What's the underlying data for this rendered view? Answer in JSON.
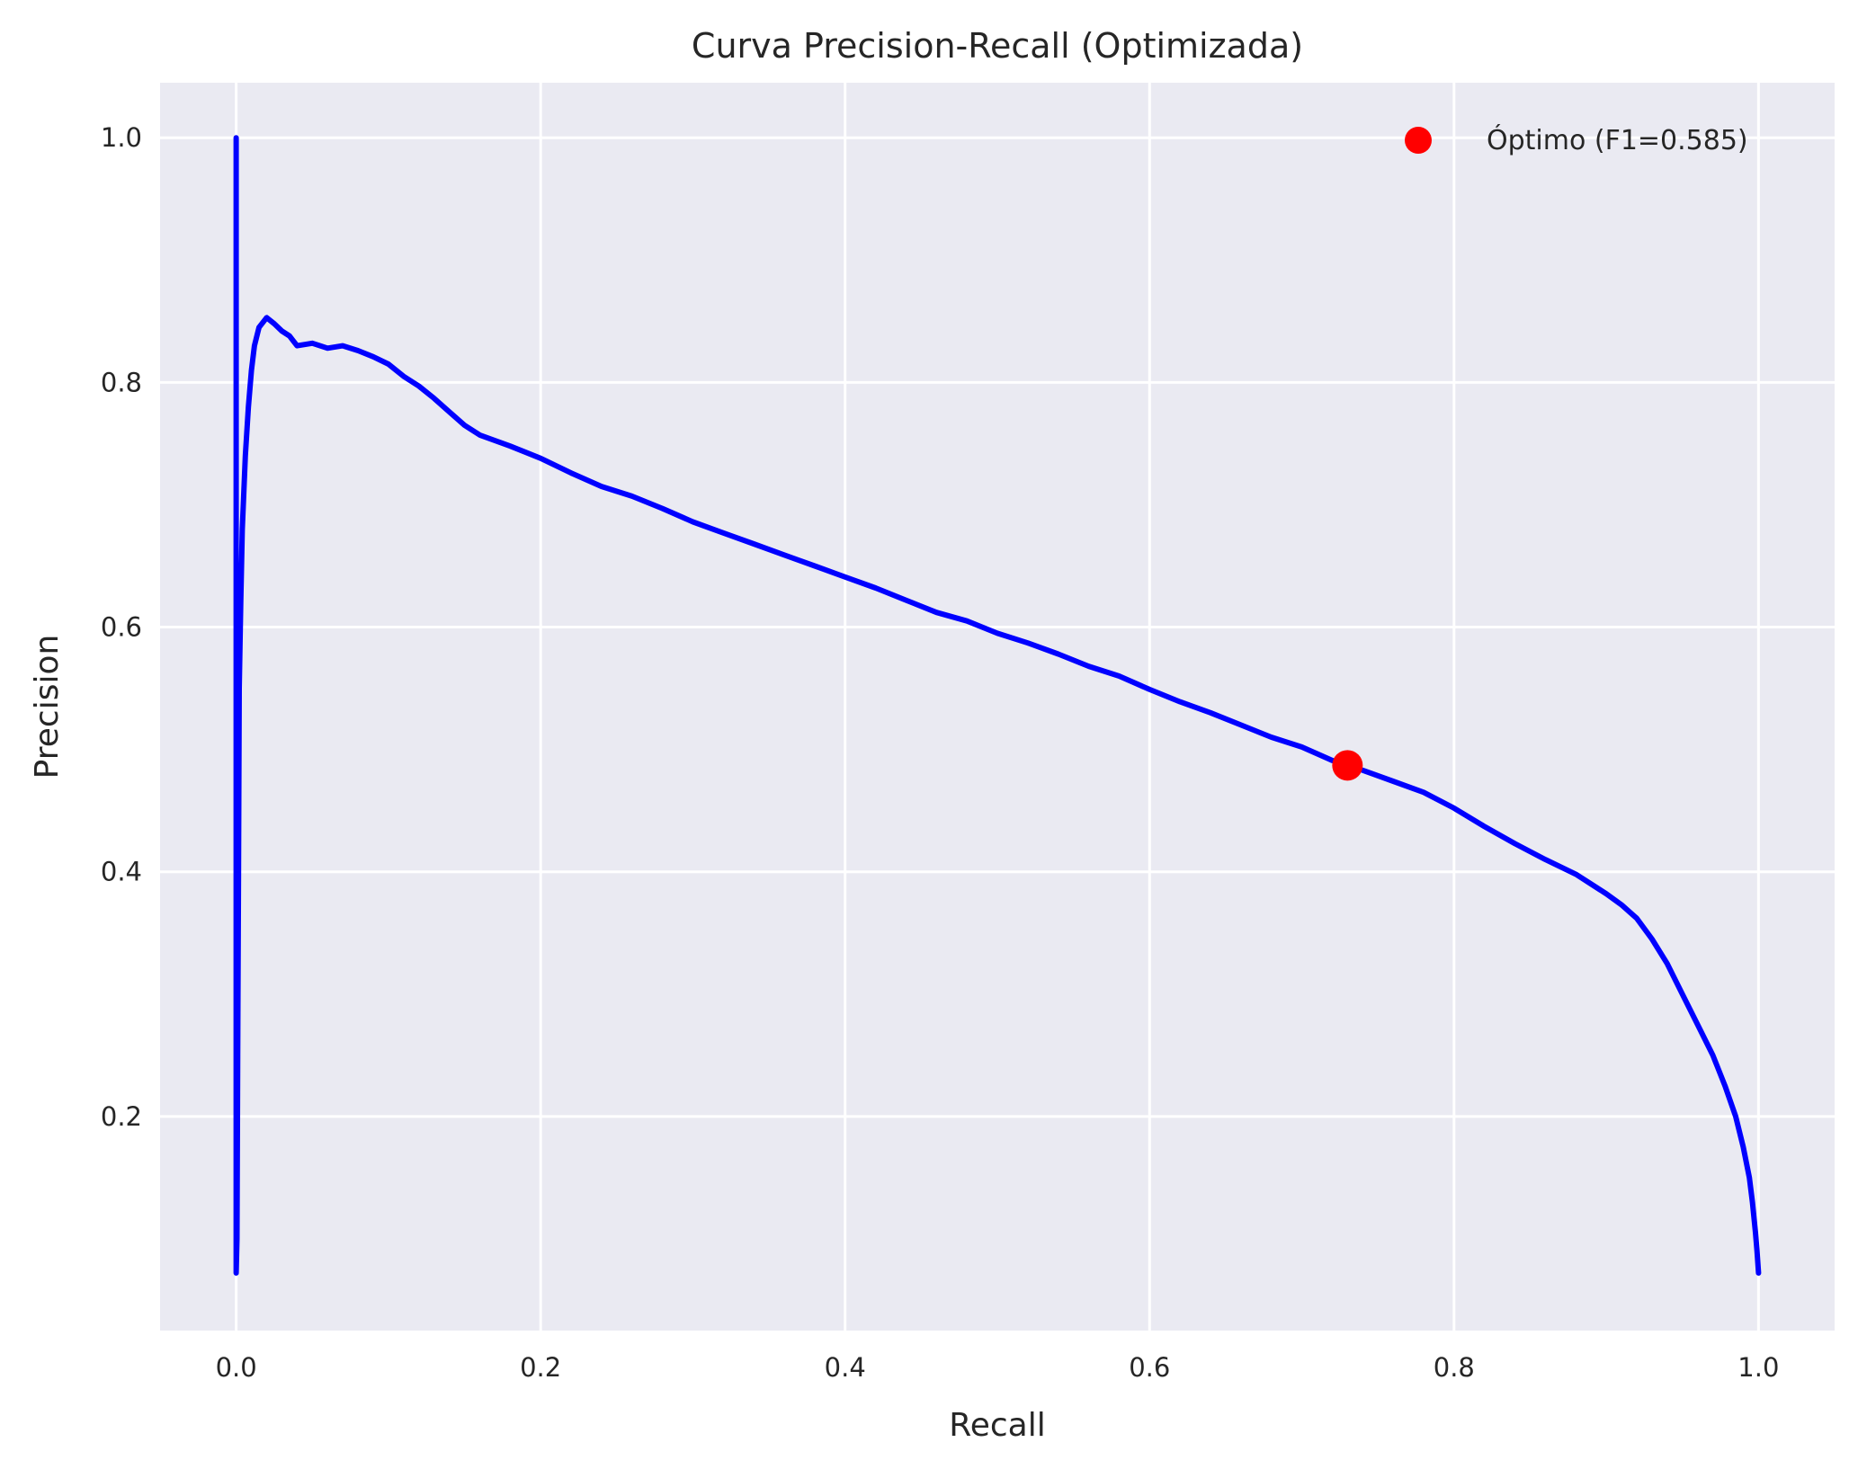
{
  "chart_data": {
    "type": "line",
    "title": "Curva Precision-Recall (Optimizada)",
    "xlabel": "Recall",
    "ylabel": "Precision",
    "xlim": [
      -0.05,
      1.05
    ],
    "ylim": [
      0.025,
      1.045
    ],
    "xticks": [
      0.0,
      0.2,
      0.4,
      0.6,
      0.8,
      1.0
    ],
    "xtick_labels": [
      "0.0",
      "0.2",
      "0.4",
      "0.6",
      "0.8",
      "1.0"
    ],
    "yticks": [
      0.2,
      0.4,
      0.6,
      0.8,
      1.0
    ],
    "ytick_labels": [
      "0.2",
      "0.4",
      "0.6",
      "0.8",
      "1.0"
    ],
    "grid": true,
    "legend_position": "top-right",
    "colors": {
      "background": "#eaeaf2",
      "grid": "#ffffff",
      "line": "#0000ff",
      "marker": "#ff0000"
    },
    "series": [
      {
        "values": [
          [
            1.0,
            0.072
          ],
          [
            0.999,
            0.09
          ],
          [
            0.998,
            0.105
          ],
          [
            0.996,
            0.13
          ],
          [
            0.994,
            0.15
          ],
          [
            0.99,
            0.175
          ],
          [
            0.985,
            0.2
          ],
          [
            0.978,
            0.225
          ],
          [
            0.97,
            0.25
          ],
          [
            0.96,
            0.275
          ],
          [
            0.95,
            0.3
          ],
          [
            0.94,
            0.325
          ],
          [
            0.93,
            0.345
          ],
          [
            0.92,
            0.362
          ],
          [
            0.91,
            0.373
          ],
          [
            0.9,
            0.382
          ],
          [
            0.89,
            0.39
          ],
          [
            0.88,
            0.398
          ],
          [
            0.86,
            0.41
          ],
          [
            0.84,
            0.423
          ],
          [
            0.82,
            0.437
          ],
          [
            0.8,
            0.452
          ],
          [
            0.78,
            0.465
          ],
          [
            0.76,
            0.474
          ],
          [
            0.74,
            0.483
          ],
          [
            0.73,
            0.487
          ],
          [
            0.72,
            0.491
          ],
          [
            0.7,
            0.502
          ],
          [
            0.68,
            0.51
          ],
          [
            0.66,
            0.52
          ],
          [
            0.64,
            0.53
          ],
          [
            0.62,
            0.539
          ],
          [
            0.6,
            0.549
          ],
          [
            0.58,
            0.56
          ],
          [
            0.56,
            0.568
          ],
          [
            0.54,
            0.578
          ],
          [
            0.52,
            0.587
          ],
          [
            0.5,
            0.595
          ],
          [
            0.48,
            0.605
          ],
          [
            0.46,
            0.612
          ],
          [
            0.44,
            0.622
          ],
          [
            0.42,
            0.632
          ],
          [
            0.4,
            0.641
          ],
          [
            0.38,
            0.65
          ],
          [
            0.36,
            0.659
          ],
          [
            0.34,
            0.668
          ],
          [
            0.32,
            0.677
          ],
          [
            0.3,
            0.686
          ],
          [
            0.28,
            0.697
          ],
          [
            0.26,
            0.707
          ],
          [
            0.24,
            0.715
          ],
          [
            0.22,
            0.726
          ],
          [
            0.2,
            0.738
          ],
          [
            0.18,
            0.748
          ],
          [
            0.16,
            0.757
          ],
          [
            0.15,
            0.765
          ],
          [
            0.14,
            0.776
          ],
          [
            0.13,
            0.787
          ],
          [
            0.12,
            0.797
          ],
          [
            0.11,
            0.805
          ],
          [
            0.1,
            0.815
          ],
          [
            0.09,
            0.821
          ],
          [
            0.08,
            0.826
          ],
          [
            0.07,
            0.83
          ],
          [
            0.06,
            0.828
          ],
          [
            0.05,
            0.832
          ],
          [
            0.04,
            0.83
          ],
          [
            0.035,
            0.838
          ],
          [
            0.03,
            0.842
          ],
          [
            0.025,
            0.848
          ],
          [
            0.02,
            0.853
          ],
          [
            0.015,
            0.845
          ],
          [
            0.012,
            0.83
          ],
          [
            0.01,
            0.81
          ],
          [
            0.008,
            0.78
          ],
          [
            0.006,
            0.74
          ],
          [
            0.004,
            0.68
          ],
          [
            0.003,
            0.62
          ],
          [
            0.002,
            0.55
          ],
          [
            0.0015,
            0.4
          ],
          [
            0.001,
            0.25
          ],
          [
            0.0005,
            0.1
          ],
          [
            0.0,
            0.072
          ],
          [
            0.0,
            1.0
          ]
        ]
      }
    ],
    "optimal_point": {
      "x": 0.73,
      "y": 0.487,
      "legend_label": "Óptimo (F1=0.585)"
    }
  }
}
